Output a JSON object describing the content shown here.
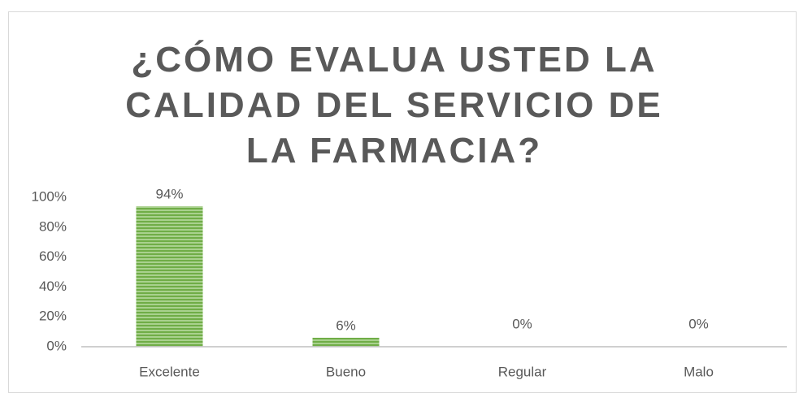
{
  "chart_data": {
    "type": "bar",
    "title": "¿CÓMO EVALUA USTED LA CALIDAD DEL SERVICIO DE LA FARMACIA?",
    "categories": [
      "Excelente",
      "Bueno",
      "Regular",
      "Malo"
    ],
    "values": [
      94,
      6,
      0,
      0
    ],
    "value_labels": [
      "94%",
      "6%",
      "0%",
      "0%"
    ],
    "color": "#70ad47",
    "ylim": [
      0,
      100
    ],
    "yticks": [
      {
        "value": 0,
        "label": "0%"
      },
      {
        "value": 20,
        "label": "20%"
      },
      {
        "value": 40,
        "label": "40%"
      },
      {
        "value": 60,
        "label": "60%"
      },
      {
        "value": 80,
        "label": "80%"
      },
      {
        "value": 100,
        "label": "100%"
      }
    ],
    "grid": false
  }
}
